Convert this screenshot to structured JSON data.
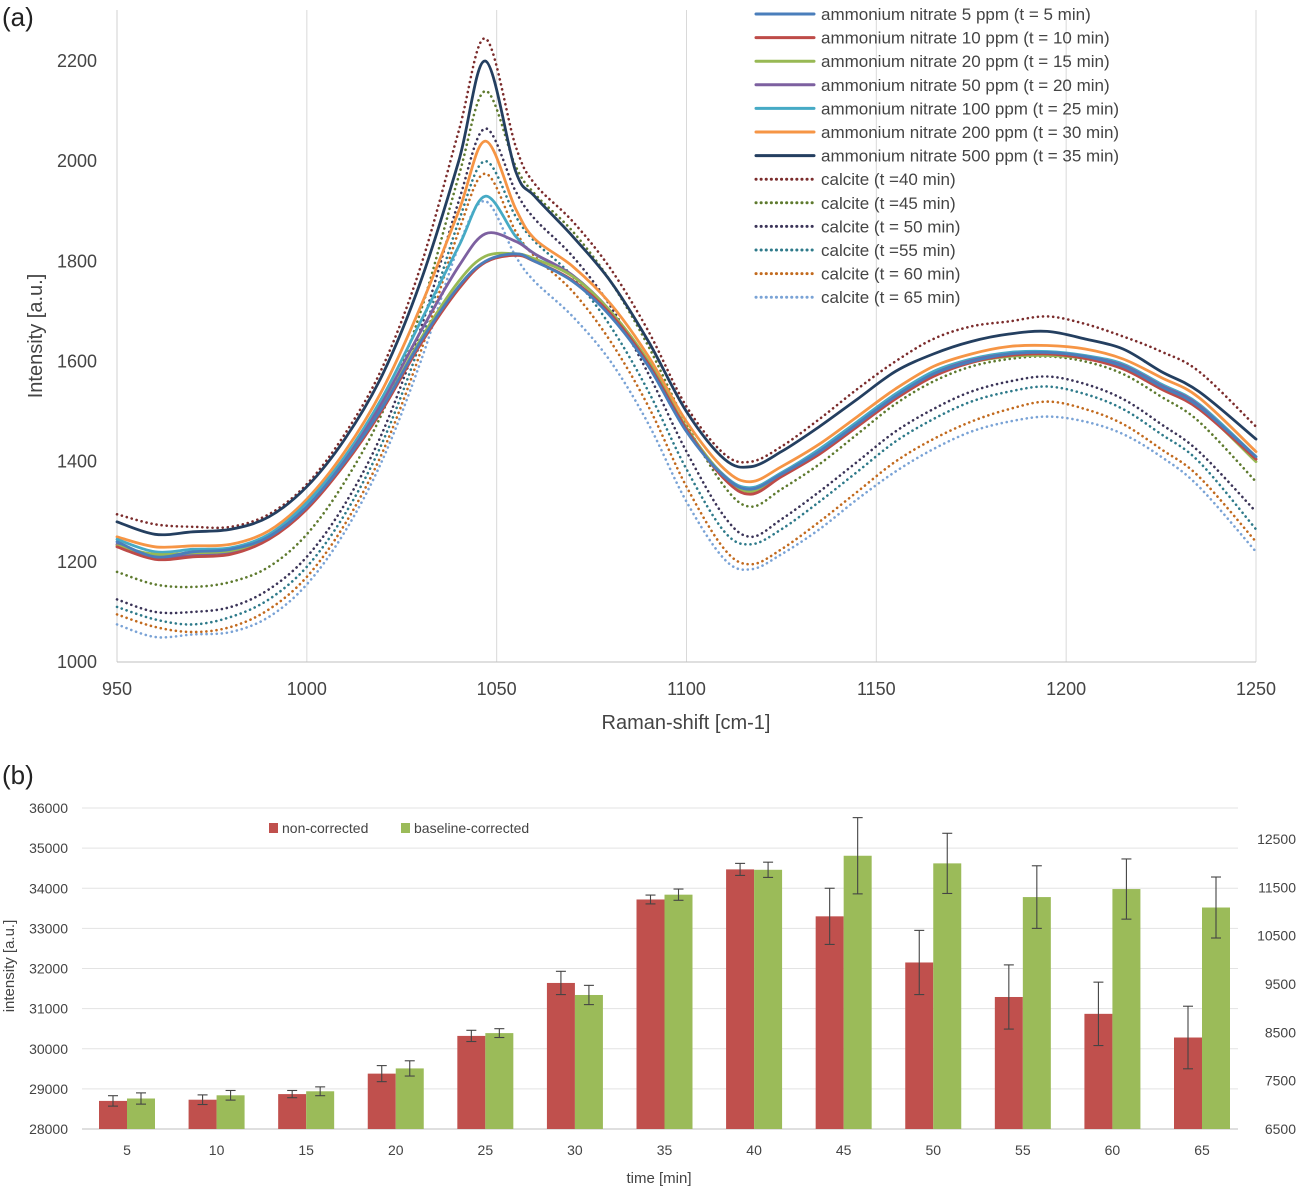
{
  "colors": {
    "an5": "#4a7ebb",
    "an10": "#be4b48",
    "an20": "#98b954",
    "an50": "#7d60a0",
    "an100": "#46aac5",
    "an200": "#f69545",
    "an500": "#243f60",
    "c40": "#7b2c2c",
    "c45": "#5e7a2e",
    "c50": "#3b3458",
    "c55": "#2e7a8a",
    "c60": "#c26a1e",
    "c65": "#7aa3d6",
    "bar_non": "#c0504d",
    "bar_base": "#9bbb59"
  },
  "chart_data": [
    {
      "panel_label": "(a)",
      "type": "line",
      "xlabel": "Raman-shift [cm-1]",
      "ylabel": "Intensity [a.u.]",
      "xlim": [
        950,
        1250
      ],
      "ylim": [
        1000,
        2300
      ],
      "x_ticks": [
        "950",
        "1000",
        "1050",
        "1100",
        "1150",
        "1200",
        "1250"
      ],
      "y_ticks": [
        "1000",
        "1200",
        "1400",
        "1600",
        "1800",
        "2000",
        "2200"
      ],
      "grid": "vertical",
      "legend_position": "top-right",
      "x": [
        950,
        960,
        970,
        980,
        990,
        1000,
        1010,
        1020,
        1030,
        1040,
        1047,
        1055,
        1060,
        1070,
        1080,
        1090,
        1100,
        1110,
        1117,
        1125,
        1135,
        1145,
        1155,
        1165,
        1175,
        1185,
        1195,
        1205,
        1215,
        1225,
        1235,
        1250
      ],
      "series": [
        {
          "name": "ammonium nitrate 5 ppm (t = 5 min)",
          "style": "solid",
          "color_key": "an5",
          "values": [
            1240,
            1210,
            1220,
            1225,
            1250,
            1310,
            1400,
            1510,
            1640,
            1750,
            1800,
            1815,
            1800,
            1760,
            1690,
            1590,
            1460,
            1370,
            1345,
            1375,
            1420,
            1475,
            1530,
            1575,
            1600,
            1615,
            1618,
            1610,
            1590,
            1550,
            1510,
            1410
          ]
        },
        {
          "name": "ammonium nitrate 10 ppm (t = 10 min)",
          "style": "solid",
          "color_key": "an10",
          "values": [
            1230,
            1205,
            1210,
            1215,
            1245,
            1305,
            1395,
            1505,
            1635,
            1745,
            1798,
            1812,
            1800,
            1762,
            1695,
            1595,
            1465,
            1365,
            1335,
            1370,
            1415,
            1470,
            1525,
            1570,
            1598,
            1612,
            1615,
            1606,
            1585,
            1545,
            1505,
            1405
          ]
        },
        {
          "name": "ammonium nitrate 20 ppm (t = 15 min)",
          "style": "solid",
          "color_key": "an20",
          "values": [
            1232,
            1215,
            1218,
            1222,
            1248,
            1308,
            1398,
            1510,
            1645,
            1760,
            1810,
            1815,
            1805,
            1770,
            1700,
            1600,
            1468,
            1370,
            1340,
            1372,
            1418,
            1472,
            1528,
            1572,
            1598,
            1610,
            1612,
            1606,
            1588,
            1548,
            1508,
            1400
          ]
        },
        {
          "name": "ammonium nitrate 50 ppm (t = 20 min)",
          "style": "solid",
          "color_key": "an50",
          "values": [
            1235,
            1210,
            1215,
            1220,
            1250,
            1310,
            1402,
            1520,
            1660,
            1790,
            1855,
            1840,
            1815,
            1772,
            1700,
            1598,
            1465,
            1370,
            1345,
            1375,
            1420,
            1475,
            1530,
            1575,
            1602,
            1615,
            1618,
            1610,
            1592,
            1552,
            1512,
            1405
          ]
        },
        {
          "name": "ammonium nitrate 100 ppm (t = 25 min)",
          "style": "solid",
          "color_key": "an100",
          "values": [
            1245,
            1220,
            1225,
            1228,
            1255,
            1318,
            1410,
            1530,
            1680,
            1830,
            1930,
            1850,
            1815,
            1772,
            1700,
            1598,
            1465,
            1372,
            1348,
            1378,
            1425,
            1480,
            1535,
            1580,
            1605,
            1618,
            1620,
            1612,
            1595,
            1555,
            1515,
            1410
          ]
        },
        {
          "name": "ammonium nitrate 200 ppm (t = 30 min)",
          "style": "solid",
          "color_key": "an200",
          "values": [
            1250,
            1230,
            1232,
            1235,
            1262,
            1325,
            1420,
            1545,
            1710,
            1900,
            2040,
            1905,
            1845,
            1790,
            1715,
            1610,
            1480,
            1385,
            1360,
            1390,
            1435,
            1490,
            1545,
            1590,
            1615,
            1630,
            1632,
            1625,
            1605,
            1568,
            1528,
            1420
          ]
        },
        {
          "name": "ammonium nitrate 500 ppm (t = 35 min)",
          "style": "solid",
          "color_key": "an500",
          "values": [
            1280,
            1255,
            1260,
            1265,
            1290,
            1350,
            1445,
            1575,
            1760,
            2000,
            2200,
            1980,
            1930,
            1850,
            1760,
            1640,
            1500,
            1405,
            1390,
            1420,
            1470,
            1525,
            1580,
            1615,
            1640,
            1655,
            1660,
            1645,
            1625,
            1580,
            1540,
            1445
          ]
        },
        {
          "name": "calcite (t =40 min)",
          "style": "dotted",
          "color_key": "c40",
          "values": [
            1295,
            1275,
            1270,
            1270,
            1295,
            1355,
            1455,
            1590,
            1790,
            2060,
            2245,
            2030,
            1955,
            1880,
            1785,
            1660,
            1510,
            1415,
            1400,
            1430,
            1485,
            1545,
            1600,
            1645,
            1670,
            1680,
            1690,
            1675,
            1650,
            1620,
            1580,
            1470
          ]
        },
        {
          "name": "calcite (t =45 min)",
          "style": "dotted",
          "color_key": "c45",
          "values": [
            1180,
            1155,
            1150,
            1160,
            1190,
            1255,
            1360,
            1500,
            1700,
            1970,
            2140,
            1990,
            1935,
            1860,
            1760,
            1630,
            1475,
            1350,
            1310,
            1345,
            1395,
            1455,
            1515,
            1560,
            1590,
            1605,
            1610,
            1600,
            1575,
            1530,
            1480,
            1360
          ]
        },
        {
          "name": "calcite (t = 50 min)",
          "style": "dotted",
          "color_key": "c50",
          "values": [
            1125,
            1100,
            1100,
            1110,
            1145,
            1210,
            1315,
            1460,
            1665,
            1920,
            2065,
            1940,
            1885,
            1810,
            1710,
            1575,
            1420,
            1290,
            1250,
            1285,
            1340,
            1400,
            1460,
            1505,
            1540,
            1560,
            1570,
            1555,
            1525,
            1475,
            1420,
            1300
          ]
        },
        {
          "name": "calcite (t =55 min)",
          "style": "dotted",
          "color_key": "c55",
          "values": [
            1110,
            1085,
            1075,
            1090,
            1125,
            1190,
            1295,
            1440,
            1640,
            1880,
            2000,
            1890,
            1840,
            1770,
            1670,
            1540,
            1385,
            1260,
            1235,
            1265,
            1320,
            1380,
            1440,
            1485,
            1520,
            1540,
            1550,
            1535,
            1505,
            1455,
            1400,
            1265
          ]
        },
        {
          "name": "calcite (t = 60 min)",
          "style": "dotted",
          "color_key": "c60",
          "values": [
            1095,
            1070,
            1060,
            1070,
            1105,
            1170,
            1275,
            1420,
            1620,
            1860,
            1975,
            1860,
            1810,
            1740,
            1640,
            1510,
            1350,
            1225,
            1195,
            1225,
            1280,
            1340,
            1400,
            1445,
            1480,
            1505,
            1520,
            1505,
            1475,
            1425,
            1370,
            1240
          ]
        },
        {
          "name": "calcite (t = 65 min)",
          "style": "dotted",
          "color_key": "c65",
          "values": [
            1075,
            1050,
            1055,
            1060,
            1090,
            1155,
            1260,
            1405,
            1600,
            1830,
            1920,
            1810,
            1760,
            1690,
            1600,
            1475,
            1320,
            1205,
            1185,
            1215,
            1265,
            1325,
            1380,
            1425,
            1460,
            1480,
            1490,
            1480,
            1455,
            1410,
            1350,
            1220
          ]
        }
      ]
    },
    {
      "panel_label": "(b)",
      "type": "bar",
      "xlabel": "time [min]",
      "ylabel": "intensity [a.u.]",
      "categories": [
        "5",
        "10",
        "15",
        "20",
        "25",
        "30",
        "35",
        "40",
        "45",
        "50",
        "55",
        "60",
        "65"
      ],
      "ylim": [
        28000,
        36000
      ],
      "y_ticks": [
        "28000",
        "29000",
        "30000",
        "31000",
        "32000",
        "33000",
        "34000",
        "35000",
        "36000"
      ],
      "ylim_right": [
        6500,
        13250
      ],
      "y_ticks_right": [
        "6500",
        "7500",
        "8500",
        "9500",
        "10500",
        "11500",
        "12500"
      ],
      "grid": "horizontal",
      "legend_position": "top-left",
      "series": [
        {
          "name": "non-corrected",
          "axis": "left",
          "color_key": "bar_non",
          "values": [
            28700,
            28730,
            28870,
            29380,
            30320,
            31640,
            33720,
            34470,
            33300,
            32150,
            31290,
            30870,
            30280
          ],
          "errors": [
            130,
            120,
            90,
            200,
            140,
            290,
            110,
            150,
            700,
            800,
            800,
            790,
            780
          ]
        },
        {
          "name": "baseline-corrected",
          "axis": "left",
          "color_key": "bar_base",
          "values": [
            28760,
            28840,
            28940,
            29510,
            30390,
            31340,
            33840,
            34460,
            34810,
            34620,
            33780,
            33980,
            33520
          ],
          "errors": [
            140,
            120,
            110,
            190,
            110,
            240,
            140,
            190,
            950,
            750,
            780,
            750,
            760
          ]
        }
      ]
    }
  ]
}
